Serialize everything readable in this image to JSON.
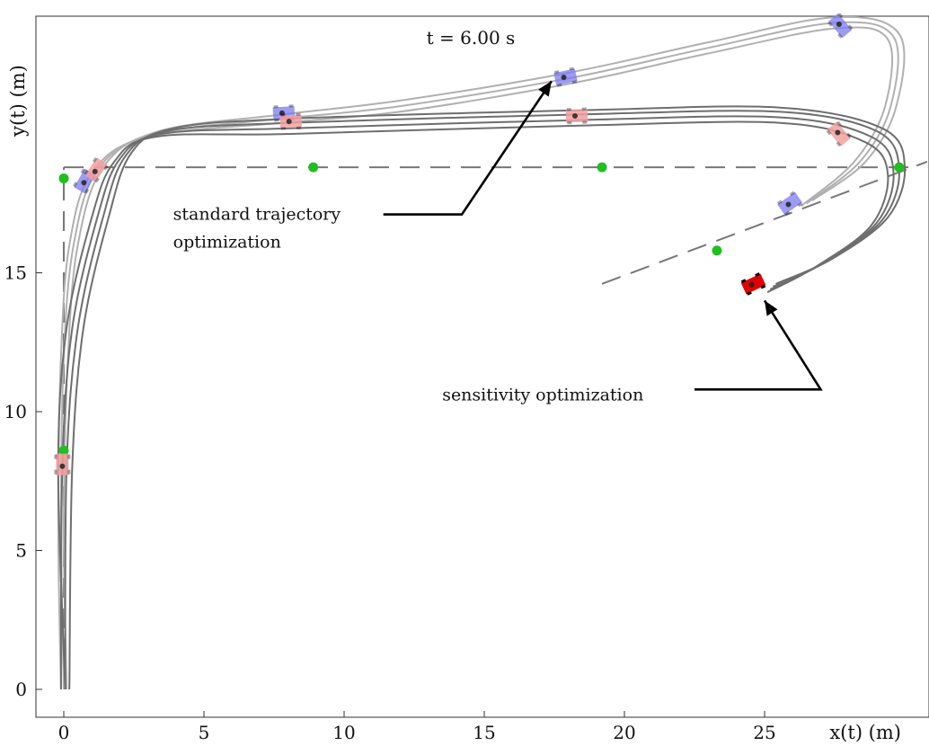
{
  "chart_data": {
    "type": "line",
    "title": "",
    "time_label": "t = 6.00 s",
    "xlabel": "x(t)  (m)",
    "ylabel": "y(t)  (m)",
    "xlim": [
      -1,
      31
    ],
    "ylim": [
      -1,
      24
    ],
    "xticks": [
      0,
      5,
      10,
      15,
      20,
      25
    ],
    "yticks": [
      0,
      5,
      10,
      15
    ],
    "grid": false,
    "colors": {
      "standard_path": "#b0b0b0",
      "sensitivity_path": "#6e6e6e",
      "reference": "#777777",
      "waypoint": "#1fbf1f",
      "car_blue": "#7b7bf0",
      "car_red_faded": "#f3a0a0",
      "car_red": "#e00000",
      "arrow": "#000000"
    },
    "reference_lines": [
      {
        "points": [
          [
            0,
            0
          ],
          [
            0,
            18.8
          ]
        ]
      },
      {
        "points": [
          [
            0,
            18.8
          ],
          [
            30.5,
            18.8
          ]
        ]
      },
      {
        "points": [
          [
            19.2,
            14.6
          ],
          [
            30.8,
            19.0
          ]
        ]
      }
    ],
    "waypoints": [
      {
        "x": 0.0,
        "y": 18.4
      },
      {
        "x": 0.0,
        "y": 8.6
      },
      {
        "x": 8.9,
        "y": 18.8
      },
      {
        "x": 19.2,
        "y": 18.8
      },
      {
        "x": 29.8,
        "y": 18.8
      },
      {
        "x": 23.3,
        "y": 15.8
      }
    ],
    "standard_paths": [
      [
        [
          -0.1,
          0
        ],
        [
          -0.2,
          6
        ],
        [
          -0.1,
          12
        ],
        [
          0.2,
          16
        ],
        [
          1.0,
          18.6
        ],
        [
          3.0,
          19.9
        ],
        [
          7.8,
          20.4
        ],
        [
          12,
          20.8
        ],
        [
          18,
          21.8
        ],
        [
          23,
          22.9
        ],
        [
          27.5,
          23.8
        ],
        [
          29.4,
          23.4
        ],
        [
          29.3,
          21
        ],
        [
          28.2,
          19.0
        ],
        [
          26.3,
          17.4
        ]
      ],
      [
        [
          0.0,
          0
        ],
        [
          -0.1,
          6
        ],
        [
          0.0,
          12
        ],
        [
          0.35,
          16
        ],
        [
          1.2,
          18.7
        ],
        [
          3.2,
          20.0
        ],
        [
          7.8,
          20.55
        ],
        [
          12,
          21.0
        ],
        [
          18,
          22.0
        ],
        [
          23,
          23.1
        ],
        [
          27.5,
          24.0
        ],
        [
          29.6,
          23.5
        ],
        [
          29.5,
          21
        ],
        [
          28.4,
          19.0
        ],
        [
          26.5,
          17.5
        ]
      ],
      [
        [
          0.1,
          0
        ],
        [
          0.0,
          6
        ],
        [
          0.15,
          12
        ],
        [
          0.5,
          16
        ],
        [
          1.4,
          18.8
        ],
        [
          3.4,
          20.1
        ],
        [
          7.8,
          20.7
        ],
        [
          12,
          21.2
        ],
        [
          18,
          22.2
        ],
        [
          23,
          23.3
        ],
        [
          27.5,
          24.2
        ],
        [
          29.8,
          23.6
        ],
        [
          29.7,
          21
        ],
        [
          28.6,
          19.0
        ],
        [
          26.7,
          17.6
        ]
      ]
    ],
    "sensitivity_paths": [
      [
        [
          -0.1,
          0
        ],
        [
          -0.05,
          8
        ],
        [
          0.3,
          13
        ],
        [
          1.2,
          17
        ],
        [
          2.0,
          19.1
        ],
        [
          3.5,
          20.0
        ],
        [
          8.1,
          20.2
        ],
        [
          18.4,
          20.5
        ],
        [
          25.5,
          20.6
        ],
        [
          28.8,
          19.9
        ],
        [
          29.6,
          18.6
        ],
        [
          29.0,
          16.8
        ],
        [
          27.0,
          15.3
        ],
        [
          25.2,
          14.4
        ]
      ],
      [
        [
          0.05,
          0
        ],
        [
          0.1,
          8
        ],
        [
          0.5,
          13
        ],
        [
          1.4,
          17
        ],
        [
          2.2,
          19.2
        ],
        [
          3.7,
          20.1
        ],
        [
          8.1,
          20.4
        ],
        [
          18.4,
          20.7
        ],
        [
          25.5,
          20.8
        ],
        [
          29.0,
          20.1
        ],
        [
          29.8,
          18.7
        ],
        [
          29.2,
          16.9
        ],
        [
          27.2,
          15.4
        ],
        [
          25.3,
          14.5
        ]
      ],
      [
        [
          0.2,
          0
        ],
        [
          0.3,
          8
        ],
        [
          0.7,
          13
        ],
        [
          1.6,
          17
        ],
        [
          2.4,
          19.3
        ],
        [
          3.9,
          20.2
        ],
        [
          8.1,
          20.55
        ],
        [
          18.4,
          20.85
        ],
        [
          25.5,
          20.95
        ],
        [
          29.2,
          20.2
        ],
        [
          30.0,
          18.8
        ],
        [
          29.4,
          17.0
        ],
        [
          27.4,
          15.5
        ],
        [
          25.4,
          14.6
        ]
      ],
      [
        [
          0.05,
          0
        ],
        [
          -0.2,
          8
        ],
        [
          0.1,
          13
        ],
        [
          1.0,
          17
        ],
        [
          1.8,
          19.0
        ],
        [
          3.3,
          19.9
        ],
        [
          8.1,
          20.0
        ],
        [
          18.4,
          20.3
        ],
        [
          25.5,
          20.4
        ],
        [
          28.6,
          19.7
        ],
        [
          29.4,
          18.5
        ],
        [
          28.8,
          16.7
        ],
        [
          26.8,
          15.2
        ],
        [
          25.1,
          14.3
        ]
      ]
    ],
    "cars": [
      {
        "x": 0.75,
        "y": 18.3,
        "angle": 60,
        "color": "blue-faded"
      },
      {
        "x": 1.15,
        "y": 18.7,
        "angle": 55,
        "color": "red-faded"
      },
      {
        "x": -0.05,
        "y": 8.1,
        "angle": 90,
        "color": "red-faded"
      },
      {
        "x": 7.85,
        "y": 20.75,
        "angle": 3,
        "color": "blue-faded"
      },
      {
        "x": 8.1,
        "y": 20.45,
        "angle": 2,
        "color": "red-faded"
      },
      {
        "x": 17.9,
        "y": 22.05,
        "angle": 12,
        "color": "blue-faded"
      },
      {
        "x": 18.3,
        "y": 20.65,
        "angle": 2,
        "color": "red-faded"
      },
      {
        "x": 27.7,
        "y": 23.9,
        "angle": -50,
        "color": "blue-faded"
      },
      {
        "x": 27.65,
        "y": 20.0,
        "angle": -50,
        "color": "red-faded"
      },
      {
        "x": 25.9,
        "y": 17.5,
        "angle": 35,
        "color": "blue-faded"
      },
      {
        "x": 24.6,
        "y": 14.6,
        "angle": 25,
        "color": "red"
      }
    ],
    "annotations": [
      {
        "text": "standard trajectory",
        "x": 3.9,
        "y": 17.1
      },
      {
        "text": "optimization",
        "x": 3.9,
        "y": 16.3
      },
      {
        "text": "sensitivity optimization",
        "x": 13.5,
        "y": 10.6
      }
    ],
    "arrows": [
      {
        "from": [
          11.4,
          17.1
        ],
        "elbow": [
          14.2,
          17.1
        ],
        "to": [
          17.4,
          21.9
        ]
      },
      {
        "from": [
          22.5,
          10.8
        ],
        "elbow": [
          27.0,
          10.8
        ],
        "to": [
          25.0,
          14.0
        ]
      }
    ]
  }
}
